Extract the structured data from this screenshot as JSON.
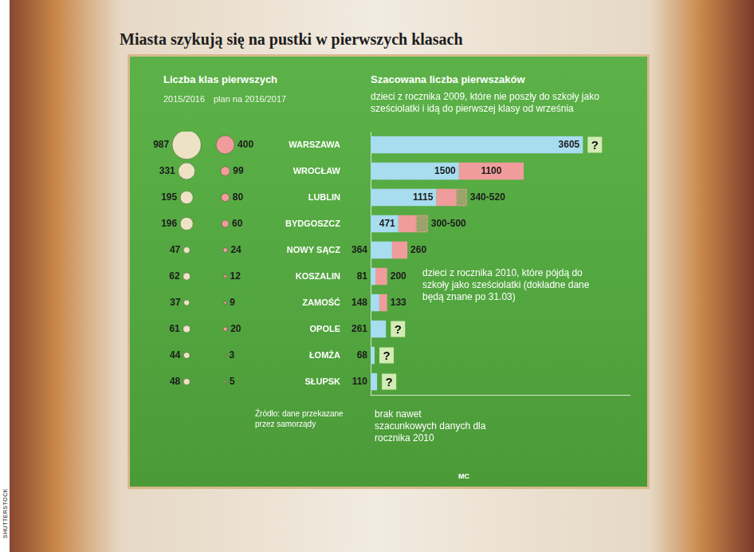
{
  "title": "Miasta szykują się na pustki w pierwszych klasach",
  "chart_data": [
    {
      "type": "bubble",
      "title": "Liczba klas pierwszych",
      "categories": [
        "WARSZAWA",
        "WROCŁAW",
        "LUBLIN",
        "BYDGOSZCZ",
        "NOWY SĄCZ",
        "KOSZALIN",
        "ZAMOŚĆ",
        "OPOLE",
        "ŁOMŻA",
        "SŁUPSK"
      ],
      "series": [
        {
          "name": "2015/2016",
          "color": "#eee2c4",
          "values": [
            987,
            331,
            195,
            196,
            47,
            62,
            37,
            61,
            44,
            48
          ]
        },
        {
          "name": "plan na 2016/2017",
          "color": "#f09c9c",
          "values": [
            400,
            99,
            80,
            60,
            24,
            12,
            9,
            20,
            3,
            5
          ]
        }
      ],
      "data_labels": true,
      "tick_labels": false,
      "grid": false
    },
    {
      "type": "bar",
      "orientation": "horizontal",
      "stacked": true,
      "title": "Szacowana liczba pierwszaków",
      "categories": [
        "WARSZAWA",
        "WROCŁAW",
        "LUBLIN",
        "BYDGOSZCZ",
        "NOWY SĄCZ",
        "KOSZALIN",
        "ZAMOŚĆ",
        "OPOLE",
        "ŁOMŻA",
        "SŁUPSK"
      ],
      "series": [
        {
          "name": "dzieci z rocznika 2009, które nie poszły do szkoły jako sześciolatki i idą do pierwszej klasy od września",
          "color": "#a8dcef",
          "values": [
            3605,
            1500,
            1115,
            471,
            364,
            81,
            148,
            261,
            68,
            110
          ]
        },
        {
          "name": "dzieci z rocznika 2010, które pójdą do szkoły jako sześciolatki (dokładne dane będą znane po 31.03)",
          "color": "#f09c9c",
          "values": [
            null,
            1100,
            340,
            300,
            260,
            200,
            133,
            null,
            null,
            null
          ],
          "values_high": [
            null,
            null,
            520,
            500,
            null,
            null,
            null,
            null,
            null,
            null
          ],
          "value_labels": [
            "?",
            "1100",
            "340-520",
            "300-500",
            "260",
            "200",
            "133",
            "?",
            "?",
            "?"
          ]
        }
      ],
      "xlim": [
        0,
        4400
      ],
      "xticks": [],
      "tick_labels": "y",
      "data_labels": true,
      "grid": false,
      "annotation": "brak nawet szacunkowych danych dla rocznika 2010"
    }
  ],
  "source": "Źródło: dane przekazane przez samorządy",
  "credit": "MC",
  "photo_credit": "SHUTTERSTOCK"
}
